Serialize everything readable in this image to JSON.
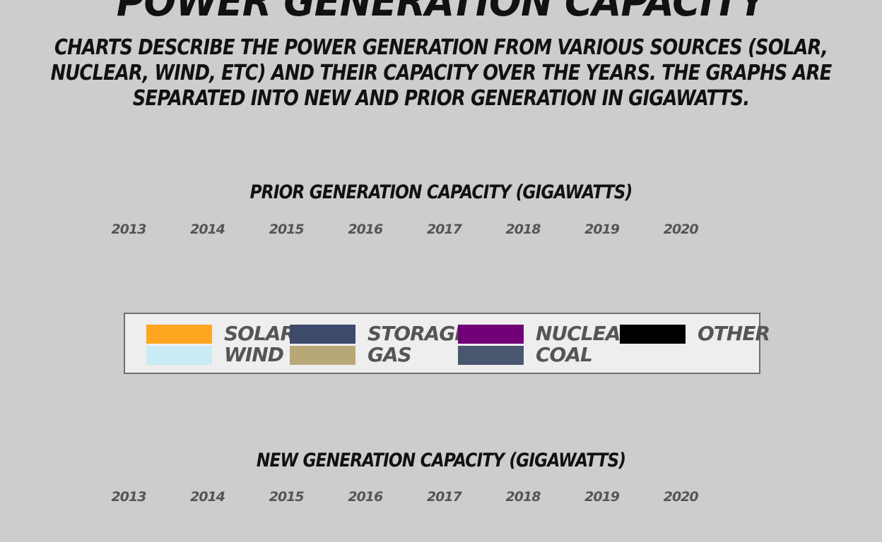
{
  "header": {
    "title": "Power Generation Capacity",
    "description": "Charts describe the power generation from various sources (Solar, Nuclear, Wind, etc) and their capacity over the years. The graphs are separated into new and prior generation in gigawatts."
  },
  "legend": {
    "items": [
      {
        "label": "Solar",
        "color": "#ffa620"
      },
      {
        "label": "Storage",
        "color": "#3d4a6b"
      },
      {
        "label": "Nuclear",
        "color": "#720076"
      },
      {
        "label": "Other",
        "color": "#000000"
      },
      {
        "label": "Wind",
        "color": "#c9ebf5"
      },
      {
        "label": "Gas",
        "color": "#b8a878"
      },
      {
        "label": "Coal",
        "color": "#48566e"
      }
    ]
  },
  "chart_data": [
    {
      "type": "area",
      "title": "Prior Generation Capacity (Gigawatts)",
      "x": [
        "2013",
        "2014",
        "2015",
        "2016",
        "2017",
        "2018",
        "2019",
        "2020"
      ],
      "series": []
    },
    {
      "type": "area",
      "title": "New Generation Capacity (Gigawatts)",
      "x": [
        "2013",
        "2014",
        "2015",
        "2016",
        "2017",
        "2018",
        "2019",
        "2020"
      ],
      "series": []
    }
  ]
}
